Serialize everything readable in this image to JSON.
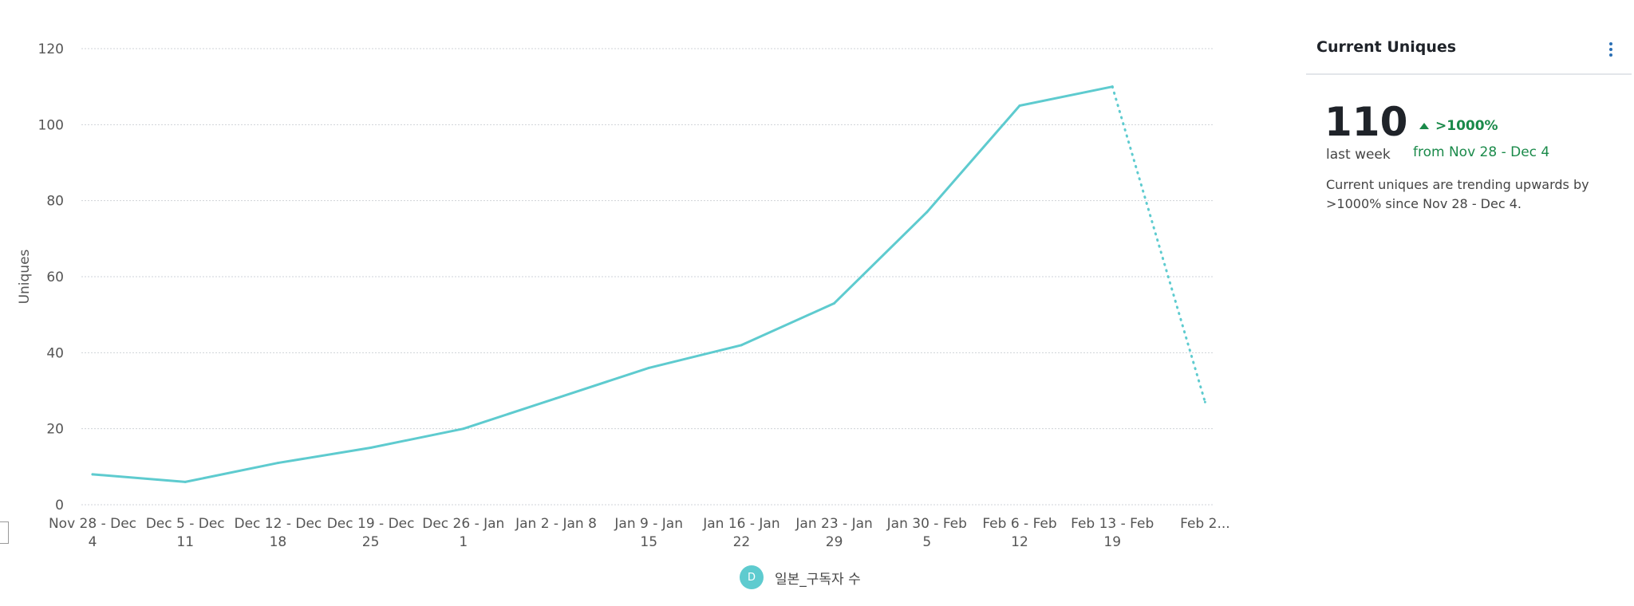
{
  "chart_data": {
    "type": "line",
    "ylabel": "Uniques",
    "ylim": [
      0,
      120
    ],
    "yticks": [
      0,
      20,
      40,
      60,
      80,
      100,
      120
    ],
    "grid": true,
    "categories": [
      [
        "Nov 28 - Dec",
        "4"
      ],
      [
        "Dec 5 - Dec",
        "11"
      ],
      [
        "Dec 12 - Dec",
        "18"
      ],
      [
        "Dec 19 - Dec",
        "25"
      ],
      [
        "Dec 26 - Jan",
        "1"
      ],
      [
        "Jan 2 - Jan 8",
        ""
      ],
      [
        "Jan 9 - Jan",
        "15"
      ],
      [
        "Jan 16 - Jan",
        "22"
      ],
      [
        "Jan 23 - Jan",
        "29"
      ],
      [
        "Jan 30 - Feb",
        "5"
      ],
      [
        "Feb 6 - Feb",
        "12"
      ],
      [
        "Feb 13 - Feb",
        "19"
      ],
      [
        "Feb 2...",
        ""
      ]
    ],
    "series": [
      {
        "name": "일본_구독자 수",
        "color": "#5ecbcf",
        "values": [
          8,
          6,
          11,
          15,
          20,
          28,
          36,
          42,
          53,
          77,
          105,
          110,
          27
        ],
        "incomplete_from_index": 11
      }
    ],
    "legend_position": "bottom-center"
  },
  "legend": {
    "badge": "D",
    "label": "일본_구독자 수"
  },
  "side_panel": {
    "title": "Current Uniques",
    "value": "110",
    "value_caption": "last week",
    "change": ">1000%",
    "change_from": "from Nov 28 - Dec 4",
    "summary": "Current uniques are trending upwards by >1000% since Nov 28 - Dec 4.",
    "menu_icon": "kebab-menu-icon",
    "change_icon": "up-arrow-icon",
    "positive_color": "#1a8a4a"
  }
}
